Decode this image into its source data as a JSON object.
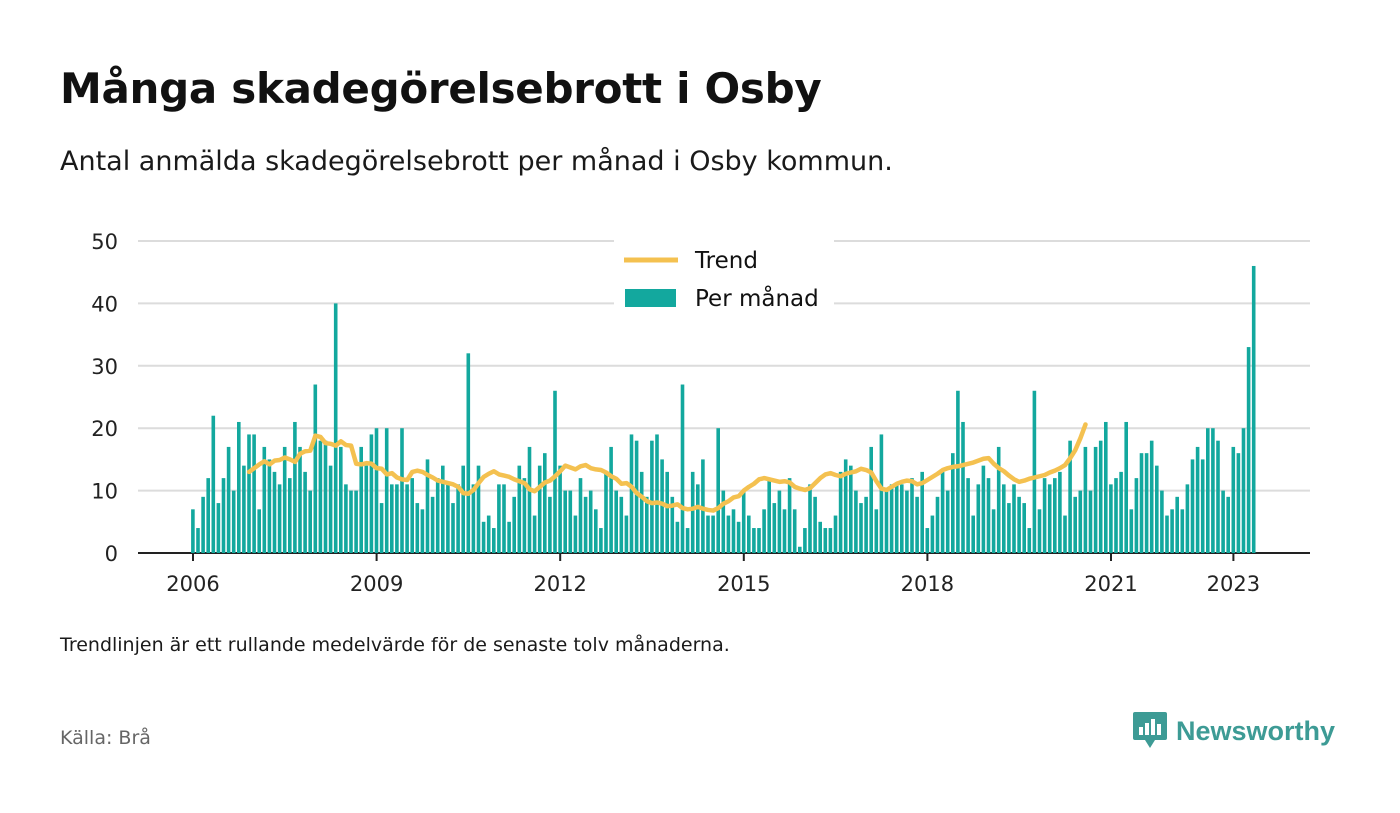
{
  "title": "Många skadegörelsebrott i Osby",
  "subtitle": "Antal anmälda skadegörelsebrott per månad i Osby kommun.",
  "footnote": "Trendlinjen är ett rullande medelvärde för de senaste tolv månaderna.",
  "source": "Källa: Brå",
  "logo": {
    "text": "Newsworthy",
    "icon": "chart-bubble-icon"
  },
  "colors": {
    "bars": "#13a89e",
    "trend": "#f4c150",
    "grid": "#dcdcdc",
    "axis": "#222222",
    "logo": "#3d9b95"
  },
  "chart_data": {
    "type": "bar",
    "x_start": "2006-01",
    "x_ticks": [
      "2006",
      "2009",
      "2012",
      "2015",
      "2018",
      "2021",
      "2023"
    ],
    "y_ticks": [
      "0",
      "10",
      "20",
      "30",
      "40",
      "50"
    ],
    "ylim": [
      0,
      50
    ],
    "grid": true,
    "legend_position": "top-center",
    "series": [
      {
        "name": "Per månad",
        "kind": "bar",
        "values": [
          7,
          4,
          9,
          12,
          22,
          8,
          12,
          17,
          10,
          21,
          14,
          19,
          19,
          7,
          17,
          15,
          13,
          11,
          17,
          12,
          21,
          17,
          13,
          10,
          27,
          18,
          18,
          14,
          40,
          17,
          11,
          10,
          10,
          17,
          14,
          19,
          20,
          8,
          20,
          11,
          11,
          20,
          11,
          12,
          8,
          7,
          15,
          9,
          12,
          14,
          11,
          8,
          11,
          14,
          32,
          11,
          14,
          5,
          6,
          4,
          11,
          11,
          5,
          9,
          14,
          12,
          17,
          6,
          14,
          16,
          9,
          26,
          14,
          10,
          10,
          6,
          12,
          9,
          10,
          7,
          4,
          13,
          17,
          10,
          9,
          6,
          19,
          18,
          13,
          9,
          18,
          19,
          15,
          13,
          9,
          5,
          27,
          4,
          13,
          11,
          15,
          6,
          6,
          20,
          10,
          6,
          7,
          5,
          10,
          6,
          4,
          4,
          7,
          12,
          8,
          10,
          7,
          12,
          7,
          1,
          4,
          11,
          9,
          5,
          4,
          4,
          6,
          13,
          15,
          14,
          10,
          8,
          9,
          17,
          7,
          19,
          10,
          11,
          11,
          11,
          10,
          12,
          9,
          13,
          4,
          6,
          9,
          13,
          10,
          16,
          26,
          21,
          12,
          6,
          11,
          14,
          12,
          7,
          17,
          11,
          8,
          11,
          9,
          8,
          4,
          26,
          7,
          12,
          11,
          12,
          13,
          6,
          18,
          9,
          10,
          17,
          10,
          17,
          18,
          21,
          11,
          12,
          13,
          21,
          7,
          12,
          16,
          16,
          18,
          14,
          10,
          6,
          7,
          9,
          7,
          11,
          15,
          17,
          15,
          20,
          20,
          18,
          10,
          9,
          17,
          16,
          20,
          33,
          46
        ]
      },
      {
        "name": "Trend",
        "kind": "line",
        "start_index": 11,
        "values": [
          13.0,
          13.6,
          14.2,
          14.7,
          14.2,
          14.8,
          14.9,
          15.3,
          15.0,
          14.6,
          15.9,
          16.3,
          16.4,
          18.8,
          18.6,
          17.6,
          17.5,
          17.2,
          17.9,
          17.3,
          17.2,
          14.3,
          14.2,
          14.4,
          14.3,
          13.6,
          13.5,
          12.6,
          12.8,
          12.1,
          11.8,
          11.7,
          13.0,
          13.2,
          13.0,
          12.5,
          12.1,
          11.6,
          11.4,
          11.2,
          11.0,
          10.6,
          9.6,
          9.5,
          10.1,
          11.2,
          12.2,
          12.7,
          13.1,
          12.6,
          12.4,
          12.2,
          11.8,
          11.5,
          11.2,
          10.2,
          9.9,
          10.6,
          11.3,
          11.6,
          12.3,
          13.1,
          14.0,
          13.7,
          13.4,
          13.9,
          14.1,
          13.6,
          13.4,
          13.3,
          12.9,
          12.3,
          11.9,
          11.1,
          11.2,
          10.6,
          9.6,
          9.0,
          8.3,
          8.0,
          8.1,
          7.9,
          7.5,
          7.6,
          7.8,
          7.2,
          7.0,
          7.1,
          7.4,
          7.1,
          6.9,
          6.8,
          7.2,
          7.9,
          8.3,
          8.9,
          9.1,
          10.0,
          10.6,
          11.1,
          11.8,
          12.0,
          11.8,
          11.6,
          11.4,
          11.5,
          11.3,
          10.6,
          10.3,
          10.1,
          10.4,
          11.2,
          12.0,
          12.6,
          12.8,
          12.5,
          12.3,
          12.7,
          12.9,
          13.1,
          13.5,
          13.3,
          12.9,
          11.5,
          10.3,
          10.1,
          10.6,
          11.1,
          11.4,
          11.6,
          11.5,
          11.0,
          11.2,
          11.7,
          12.2,
          12.7,
          13.3,
          13.6,
          13.8,
          13.9,
          14.1,
          14.3,
          14.5,
          14.8,
          15.1,
          15.2,
          14.3,
          13.6,
          13.1,
          12.4,
          11.8,
          11.4,
          11.6,
          11.9,
          12.1,
          12.3,
          12.5,
          12.9,
          13.2,
          13.6,
          14.1,
          15.2,
          16.5,
          18.4,
          20.6
        ]
      }
    ]
  }
}
